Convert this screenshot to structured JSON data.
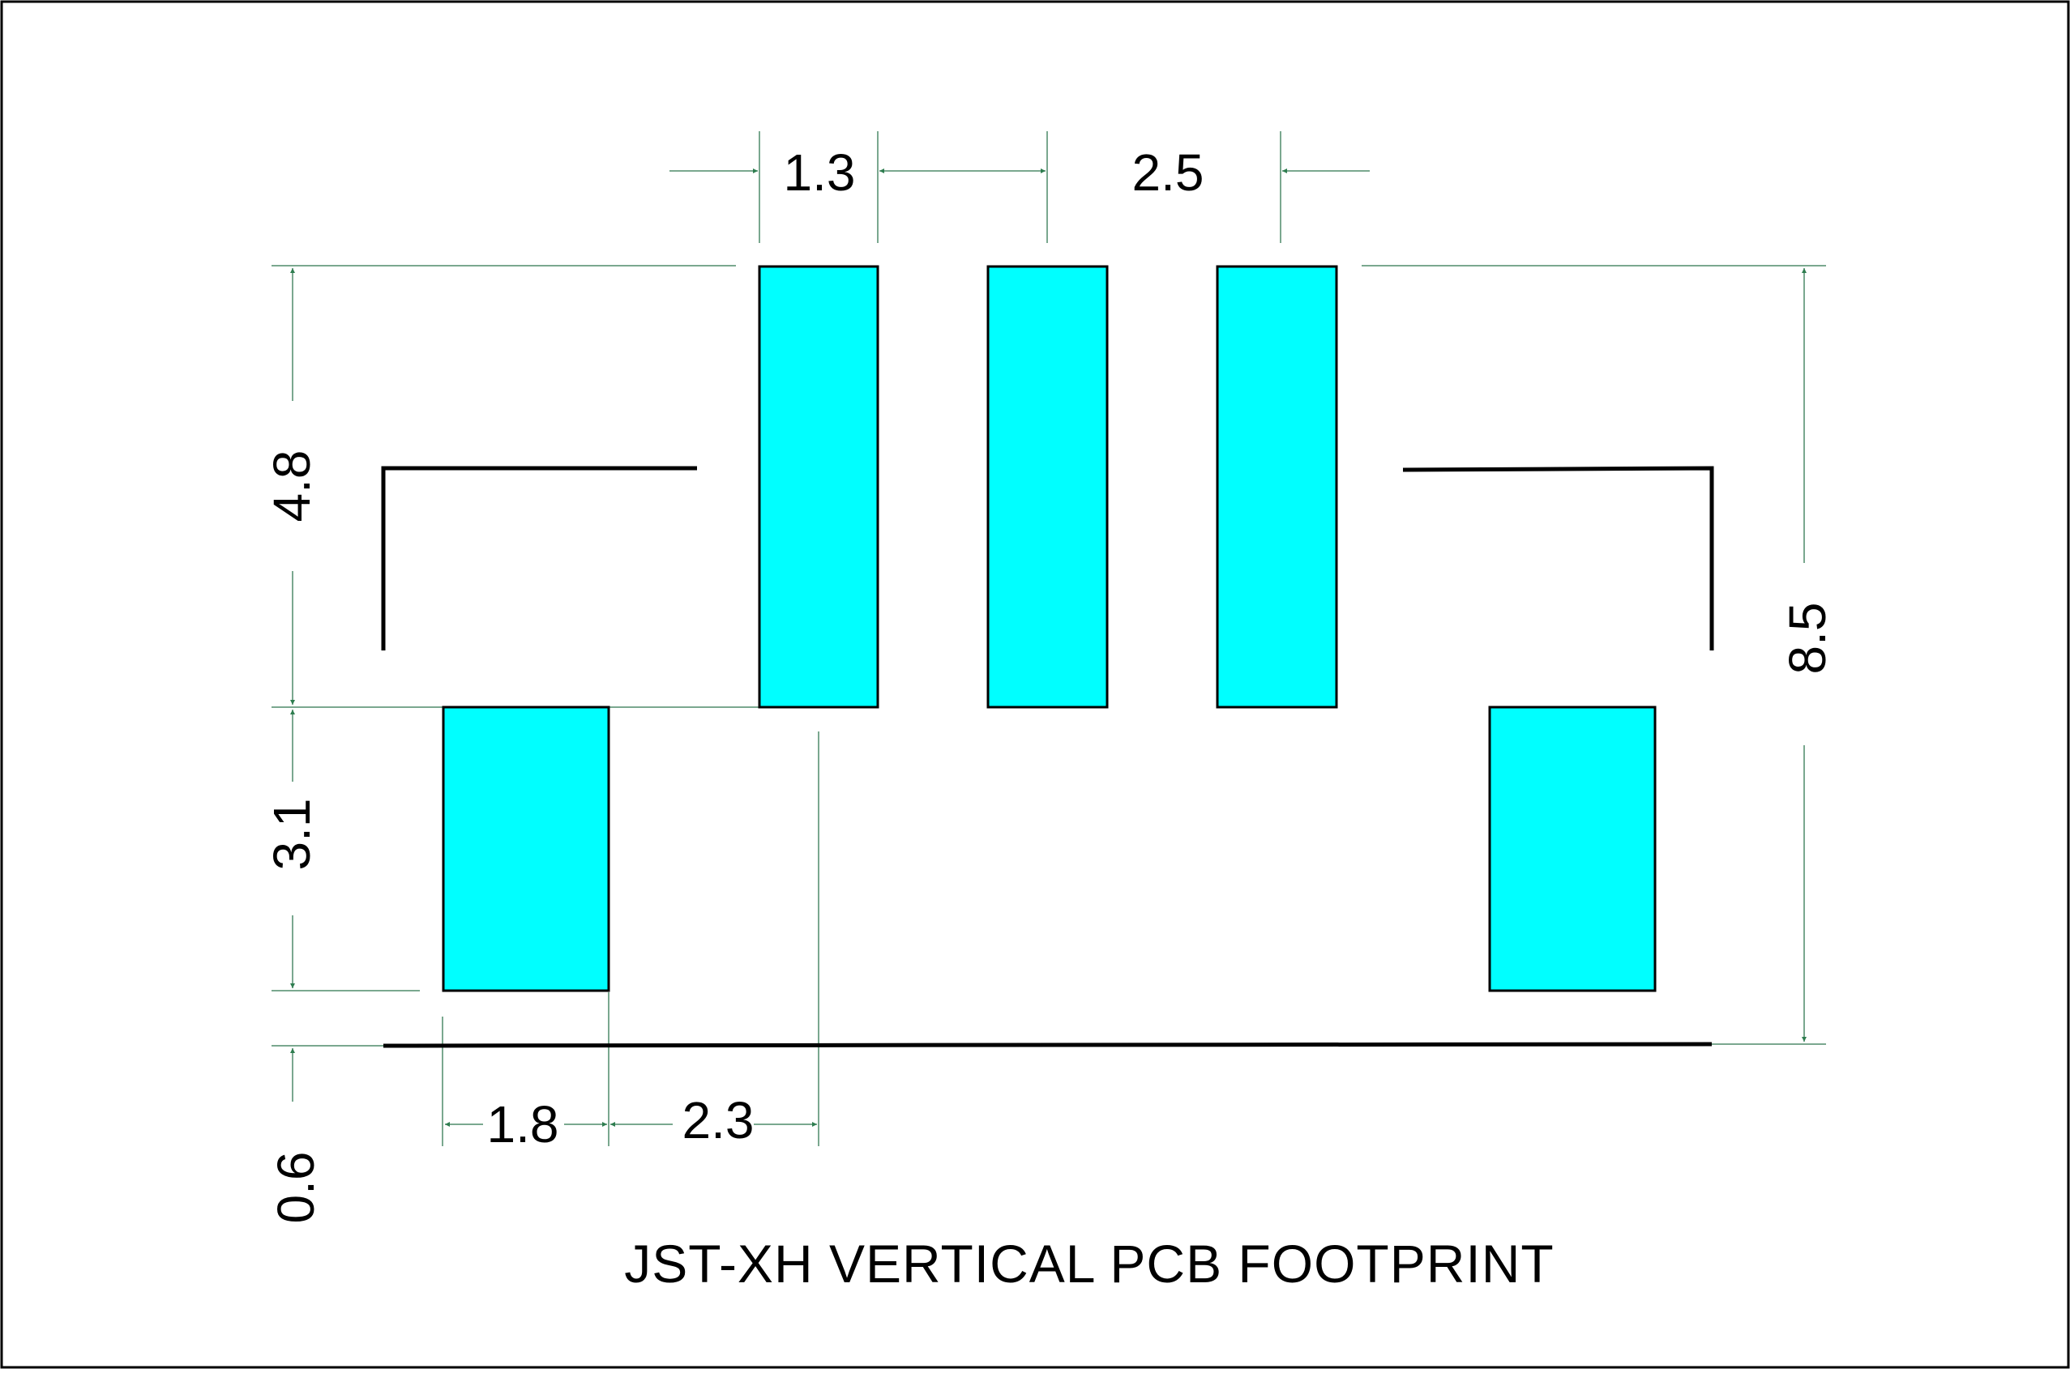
{
  "title": "JST-XH VERTICAL PCB FOOTPRINT",
  "dimensions": {
    "pad_width": "1.3",
    "pad_pitch": "2.5",
    "pad_height_top": "4.8",
    "side_pad_height": "3.1",
    "total_height": "8.5",
    "bottom_offset": "0.6",
    "side_pad_width": "1.8",
    "side_pad_offset": "2.3"
  },
  "colors": {
    "pad_fill": "#00FFFF",
    "arrow_fill": "#2E7D4F",
    "extension_line": "#4E8B6A",
    "outline": "#000000"
  },
  "elements": {
    "signal_pads": [
      "pad-1",
      "pad-2",
      "pad-3"
    ],
    "mounting_pads": [
      "mount-pad-left",
      "mount-pad-right"
    ],
    "silkscreen": [
      "silk-left-corner",
      "silk-right-corner",
      "silk-bottom-line"
    ]
  }
}
